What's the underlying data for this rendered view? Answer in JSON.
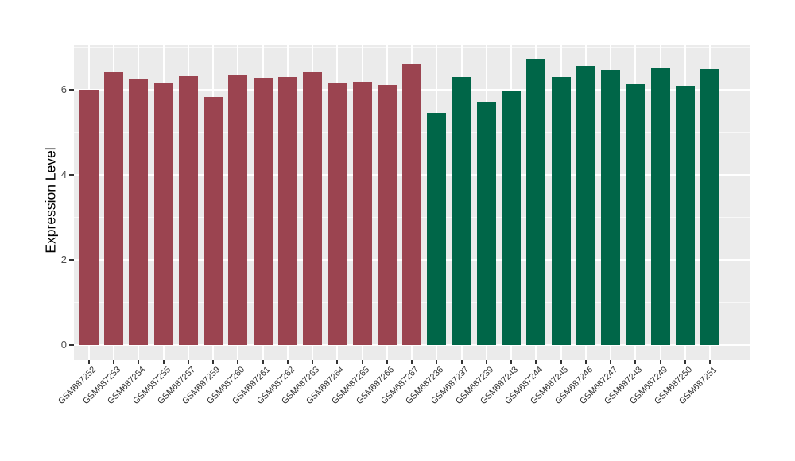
{
  "chart_data": {
    "type": "bar",
    "title": "",
    "xlabel": "",
    "ylabel": "Expression Level",
    "y_ticks": [
      0,
      2,
      4,
      6
    ],
    "y_minor_ticks": [
      1,
      3,
      5,
      7
    ],
    "ylim": [
      -0.35,
      7.04
    ],
    "grid": "on",
    "legend": "none",
    "group_colors": {
      "red": "#9B4450",
      "green": "#006648"
    },
    "bars": [
      {
        "label": "GSM687252",
        "value": 6.0,
        "group": "red"
      },
      {
        "label": "GSM687253",
        "value": 6.42,
        "group": "red"
      },
      {
        "label": "GSM687254",
        "value": 6.26,
        "group": "red"
      },
      {
        "label": "GSM687255",
        "value": 6.15,
        "group": "red"
      },
      {
        "label": "GSM687257",
        "value": 6.33,
        "group": "red"
      },
      {
        "label": "GSM687259",
        "value": 5.82,
        "group": "red"
      },
      {
        "label": "GSM687260",
        "value": 6.34,
        "group": "red"
      },
      {
        "label": "GSM687261",
        "value": 6.27,
        "group": "red"
      },
      {
        "label": "GSM687262",
        "value": 6.3,
        "group": "red"
      },
      {
        "label": "GSM687263",
        "value": 6.42,
        "group": "red"
      },
      {
        "label": "GSM687264",
        "value": 6.14,
        "group": "red"
      },
      {
        "label": "GSM687265",
        "value": 6.19,
        "group": "red"
      },
      {
        "label": "GSM687266",
        "value": 6.11,
        "group": "red"
      },
      {
        "label": "GSM687267",
        "value": 6.61,
        "group": "red"
      },
      {
        "label": "GSM687236",
        "value": 5.46,
        "group": "green"
      },
      {
        "label": "GSM687237",
        "value": 6.3,
        "group": "green"
      },
      {
        "label": "GSM687239",
        "value": 5.71,
        "group": "green"
      },
      {
        "label": "GSM687243",
        "value": 5.98,
        "group": "green"
      },
      {
        "label": "GSM687244",
        "value": 6.72,
        "group": "green"
      },
      {
        "label": "GSM687245",
        "value": 6.29,
        "group": "green"
      },
      {
        "label": "GSM687246",
        "value": 6.55,
        "group": "green"
      },
      {
        "label": "GSM687247",
        "value": 6.47,
        "group": "green"
      },
      {
        "label": "GSM687248",
        "value": 6.12,
        "group": "green"
      },
      {
        "label": "GSM687249",
        "value": 6.5,
        "group": "green"
      },
      {
        "label": "GSM687250",
        "value": 6.09,
        "group": "green"
      },
      {
        "label": "GSM687251",
        "value": 6.48,
        "group": "green"
      }
    ]
  },
  "colors": {
    "background": "#FFFFFF",
    "panel_bg": "#EBEBEB",
    "grid_major": "#FFFFFF",
    "axis_text": "#4D4D4D",
    "tick_mark": "#333333",
    "x_label_text": "#333333"
  }
}
